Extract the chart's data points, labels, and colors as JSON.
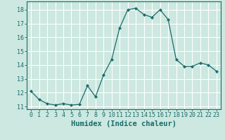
{
  "x": [
    0,
    1,
    2,
    3,
    4,
    5,
    6,
    7,
    8,
    9,
    10,
    11,
    12,
    13,
    14,
    15,
    16,
    17,
    18,
    19,
    20,
    21,
    22,
    23
  ],
  "y": [
    12.1,
    11.5,
    11.2,
    11.1,
    11.2,
    11.1,
    11.15,
    12.5,
    11.7,
    13.3,
    14.4,
    16.7,
    18.0,
    18.1,
    17.65,
    17.45,
    18.0,
    17.3,
    14.4,
    13.9,
    13.9,
    14.15,
    14.0,
    13.55
  ],
  "line_color": "#1a6b6b",
  "marker": "D",
  "marker_size": 2.0,
  "bg_color": "#cce8e0",
  "grid_color": "#ffffff",
  "grid_minor_color": "#e8f5f0",
  "xlabel": "Humidex (Indice chaleur)",
  "ylabel": "",
  "xlim": [
    -0.5,
    23.5
  ],
  "ylim": [
    10.8,
    18.6
  ],
  "yticks": [
    11,
    12,
    13,
    14,
    15,
    16,
    17,
    18
  ],
  "xticks": [
    0,
    1,
    2,
    3,
    4,
    5,
    6,
    7,
    8,
    9,
    10,
    11,
    12,
    13,
    14,
    15,
    16,
    17,
    18,
    19,
    20,
    21,
    22,
    23
  ],
  "tick_label_fontsize": 6.0,
  "xlabel_fontsize": 7.5
}
